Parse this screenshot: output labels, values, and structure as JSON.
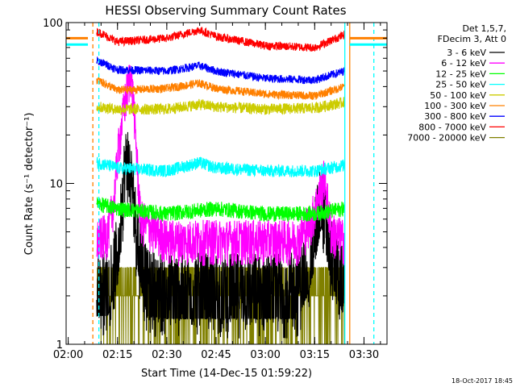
{
  "chart_data": {
    "type": "line",
    "title": "HESSI Observing Summary Count Rates",
    "xlabel": "Start Time (14-Dec-15 01:59:22)",
    "ylabel": "Count Rate (s⁻¹ detector⁻¹)",
    "yscale": "log",
    "ylim": [
      1,
      100
    ],
    "xlim": [
      "01:59:22",
      "03:37:00"
    ],
    "x_ticks": [
      "02:00",
      "02:15",
      "02:30",
      "02:45",
      "03:00",
      "03:15",
      "03:30"
    ],
    "y_ticks": [
      "1",
      "10",
      "100"
    ],
    "legend_title": [
      "Det 1,5,7,",
      "FDecim 3, Att 0"
    ],
    "legend_position": "right",
    "timestamp": "18-Oct-2017 18:45",
    "data_window": [
      "02:08:40",
      "03:24:00"
    ],
    "series": [
      {
        "name": "3 - 6 keV",
        "color": "#000000",
        "x": [
          "02:09",
          "02:12",
          "02:15",
          "02:17",
          "02:18",
          "02:19",
          "02:21",
          "02:24",
          "02:30",
          "02:45",
          "03:00",
          "03:10",
          "03:14",
          "03:17",
          "03:20",
          "03:24"
        ],
        "values": [
          2.5,
          2.5,
          4.0,
          12.0,
          16.0,
          12.0,
          5.0,
          2.5,
          2.4,
          2.4,
          2.4,
          2.4,
          4.0,
          9.0,
          4.0,
          2.5
        ]
      },
      {
        "name": "6 - 12 keV",
        "color": "#ff00ff",
        "x": [
          "02:09",
          "02:12",
          "02:14",
          "02:15",
          "02:17",
          "02:19",
          "02:20",
          "02:22",
          "02:30",
          "02:45",
          "03:00",
          "03:10",
          "03:14",
          "03:18",
          "03:20",
          "03:24"
        ],
        "values": [
          4.5,
          5.0,
          8.0,
          15.0,
          30.0,
          50.0,
          30.0,
          6.0,
          4.5,
          4.5,
          4.5,
          4.5,
          6.0,
          11.0,
          5.0,
          4.5
        ]
      },
      {
        "name": "12 - 25 keV",
        "color": "#00ff00",
        "x": [
          "02:09",
          "02:15",
          "02:30",
          "02:45",
          "03:00",
          "03:15",
          "03:24"
        ],
        "values": [
          7.5,
          7.0,
          6.5,
          7.0,
          6.5,
          6.5,
          7.0
        ]
      },
      {
        "name": "25 - 50 keV",
        "color": "#00ffff",
        "x": [
          "02:09",
          "02:15",
          "02:30",
          "02:40",
          "02:45",
          "03:00",
          "03:15",
          "03:24"
        ],
        "values": [
          13.5,
          12.5,
          12.0,
          13.5,
          12.5,
          12.0,
          12.0,
          13.0
        ]
      },
      {
        "name": "50 - 100 keV",
        "color": "#cccc00",
        "x": [
          "02:09",
          "02:15",
          "02:30",
          "02:40",
          "02:45",
          "03:00",
          "03:15",
          "03:24"
        ],
        "values": [
          30.0,
          29.0,
          29.0,
          31.0,
          30.0,
          29.0,
          29.5,
          32.0
        ]
      },
      {
        "name": "100 - 300 keV",
        "color": "#ff8000",
        "x": [
          "02:09",
          "02:15",
          "02:30",
          "02:40",
          "02:45",
          "03:00",
          "03:15",
          "03:24"
        ],
        "values": [
          44.0,
          38.0,
          39.0,
          42.0,
          39.0,
          36.0,
          35.0,
          40.0
        ]
      },
      {
        "name": "300 - 800 keV",
        "color": "#0000ff",
        "x": [
          "02:09",
          "02:15",
          "02:30",
          "02:40",
          "02:45",
          "03:00",
          "03:15",
          "03:24"
        ],
        "values": [
          58.0,
          51.0,
          50.0,
          54.0,
          50.0,
          45.0,
          44.0,
          50.0
        ]
      },
      {
        "name": "800 - 7000 keV",
        "color": "#ff0000",
        "x": [
          "02:09",
          "02:15",
          "02:30",
          "02:40",
          "02:45",
          "03:00",
          "03:15",
          "03:24"
        ],
        "values": [
          88.0,
          76.0,
          80.0,
          90.0,
          82.0,
          72.0,
          70.0,
          84.0
        ]
      },
      {
        "name": "7000 - 20000 keV",
        "color": "#808000",
        "x": [
          "02:09",
          "02:30",
          "03:00",
          "03:24"
        ],
        "values": [
          2.0,
          2.0,
          2.0,
          2.0
        ]
      }
    ],
    "annotations": [
      {
        "type": "vline",
        "x": "02:07:30",
        "color": "#ff8000",
        "style": "dashed"
      },
      {
        "type": "vline",
        "x": "02:09:20",
        "color": "#00ffff",
        "style": "dashed"
      },
      {
        "type": "vline",
        "x": "03:24:10",
        "color": "#00ffff",
        "style": "solid"
      },
      {
        "type": "vline",
        "x": "03:25:40",
        "color": "#ff8000",
        "style": "solid"
      },
      {
        "type": "vline",
        "x": "03:33:00",
        "color": "#00ffff",
        "style": "dashed"
      },
      {
        "type": "hsegment",
        "x": [
          "01:59:22",
          "02:06:00"
        ],
        "y": 80,
        "color": "#ff8000"
      },
      {
        "type": "hsegment",
        "x": [
          "01:59:22",
          "02:06:00"
        ],
        "y": 73,
        "color": "#00ffff"
      },
      {
        "type": "hsegment",
        "x": [
          "03:25:40",
          "03:37:00"
        ],
        "y": 80,
        "color": "#ff8000"
      },
      {
        "type": "hsegment",
        "x": [
          "03:25:40",
          "03:37:00"
        ],
        "y": 73,
        "color": "#00ffff"
      }
    ]
  }
}
